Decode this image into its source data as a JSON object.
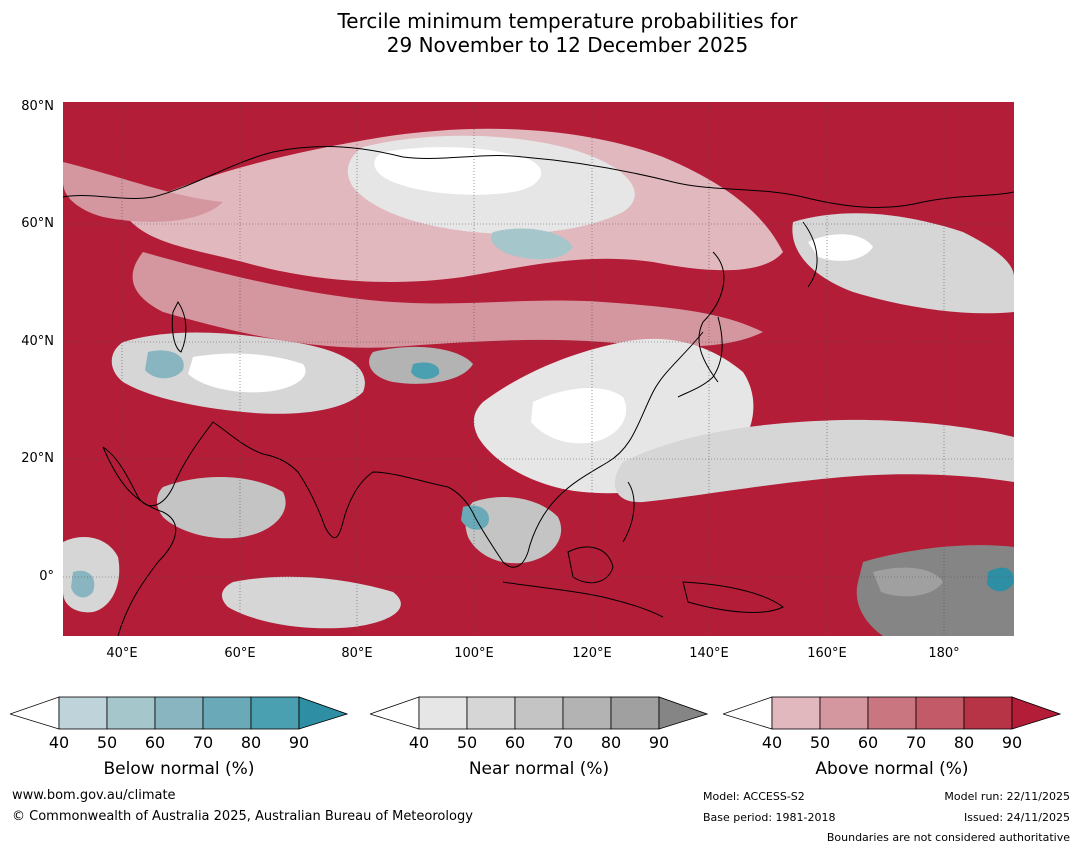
{
  "title": {
    "line1": "Tercile minimum temperature probabilities for",
    "line2": "29 November to 12 December 2025"
  },
  "map": {
    "lat_labels": [
      "80°N",
      "60°N",
      "40°N",
      "20°N",
      "0°"
    ],
    "lon_labels": [
      "40°E",
      "60°E",
      "80°E",
      "100°E",
      "120°E",
      "140°E",
      "160°E",
      "180°"
    ],
    "lon_range": [
      30,
      192
    ],
    "lat_range": [
      -10,
      81
    ]
  },
  "colorbars": [
    {
      "name": "below",
      "title": "Below normal (%)",
      "ticks": [
        "40",
        "50",
        "60",
        "70",
        "80",
        "90"
      ],
      "colors": [
        "#ffffff",
        "#bfd3da",
        "#a5c7cc",
        "#88b5c0",
        "#6aaab8",
        "#4a9fb0",
        "#2e8ea3"
      ]
    },
    {
      "name": "near",
      "title": "Near normal (%)",
      "ticks": [
        "40",
        "50",
        "60",
        "70",
        "80",
        "90"
      ],
      "colors": [
        "#ffffff",
        "#e6e6e6",
        "#d6d6d6",
        "#c4c4c4",
        "#b3b3b3",
        "#a0a0a0",
        "#858585"
      ]
    },
    {
      "name": "above",
      "title": "Above normal (%)",
      "ticks": [
        "40",
        "50",
        "60",
        "70",
        "80",
        "90"
      ],
      "colors": [
        "#ffffff",
        "#e2b8bf",
        "#d5979f",
        "#c97681",
        "#c25a68",
        "#b73447",
        "#b31d37"
      ]
    }
  ],
  "footer": {
    "website": "www.bom.gov.au/climate",
    "copyright": "© Commonwealth of Australia 2025, Australian Bureau of Meteorology",
    "model": "Model: ACCESS-S2",
    "base_period": "Base period: 1981-2018",
    "model_run": "Model run: 22/11/2025",
    "issued": "Issued: 24/11/2025",
    "boundaries": "Boundaries are not considered authoritative"
  }
}
